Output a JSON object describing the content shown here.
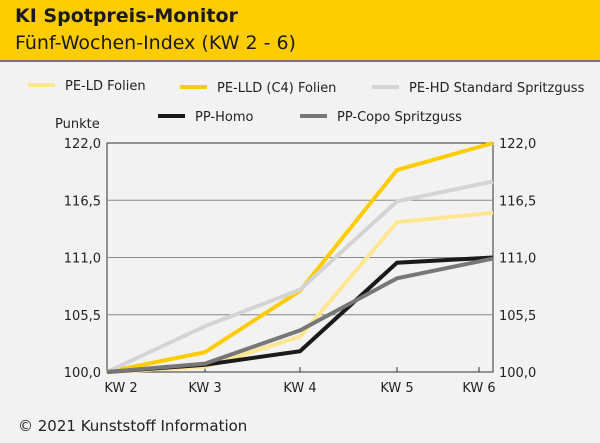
{
  "header": {
    "title": "KI Spotpreis-Monitor",
    "subtitle": "Fünf-Wochen-Index (KW 2 - 6)"
  },
  "footer": "© 2021 Kunststoff Information",
  "chart_data": {
    "type": "line",
    "title": "KI Spotpreis-Monitor",
    "subtitle": "Fünf-Wochen-Index (KW 2 - 6)",
    "ylabel": "Punkte",
    "xlabel": "",
    "categories": [
      "KW 2",
      "KW 3",
      "KW 4",
      "KW 5",
      "KW 6"
    ],
    "ylim": [
      100,
      122
    ],
    "yticks": [
      "100,0",
      "105,5",
      "111,0",
      "116,5",
      "122,0"
    ],
    "grid": true,
    "legend": "top",
    "series": [
      {
        "name": "PE-LD Folien",
        "color": "#ffe690",
        "values": [
          100.0,
          100.5,
          103.4,
          114.4,
          115.3
        ]
      },
      {
        "name": "PE-LLD (C4) Folien",
        "color": "#ffcc00",
        "values": [
          100.0,
          101.9,
          107.8,
          119.4,
          122.0
        ]
      },
      {
        "name": "PE-HD Standard Spritzguss",
        "color": "#d4d4d4",
        "values": [
          100.0,
          104.4,
          107.9,
          116.4,
          118.3
        ]
      },
      {
        "name": "PP-Homo",
        "color": "#1a1a1a",
        "values": [
          100.0,
          100.7,
          102.0,
          110.5,
          111.0
        ]
      },
      {
        "name": "PP-Copo Spritzguss",
        "color": "#777777",
        "values": [
          100.0,
          100.8,
          104.0,
          109.0,
          110.9
        ]
      }
    ]
  }
}
